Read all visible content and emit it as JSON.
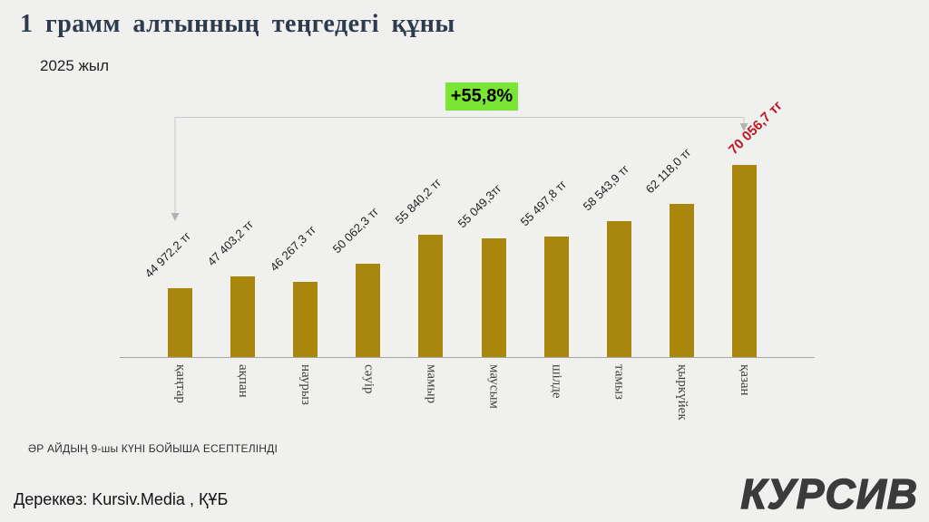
{
  "title": "1 грамм алтынның теңгедегі құны",
  "subtitle": "2025 жыл",
  "badge": {
    "label": "+55,8%",
    "bg_color": "#79e635"
  },
  "chart_data": {
    "type": "bar",
    "title": "1 грамм алтынның теңгедегі құны",
    "subtitle": "2025 жыл",
    "categories": [
      "қаңтар",
      "ақпан",
      "наурыз",
      "сәуір",
      "мамыр",
      "маусым",
      "шілде",
      "тамыз",
      "қыркүйек",
      "қазан"
    ],
    "values": [
      44972.2,
      47403.2,
      46267.3,
      50062.3,
      55840.2,
      55049.3,
      55497.8,
      58543.9,
      62118.0,
      70056.7
    ],
    "labels": [
      "44 972,2 тг",
      "47 403,2 тг",
      "46 267,3 тг",
      "50 062,3 тг",
      "55 840,2 тг",
      "55 049,3тг",
      "55 497,8 тг",
      "58 543,9 тг",
      "62 118,0 тг",
      "70 056,7 тг"
    ],
    "unit": "тг",
    "annotation": "+55,8%",
    "bar_color": "#a9860c",
    "highlight_index": 9,
    "highlight_label_color": "#be1622",
    "ylim": [
      31000,
      70056.7
    ],
    "grid": false,
    "legend": false
  },
  "footnote": "ӘР АЙДЫҢ 9-шы  КҮНІ БОЙЫША ЕСЕПТЕЛІНДІ",
  "source": "Дереккөз: Kursiv.Media , ҚҰБ",
  "logo": "КУРСИВ"
}
